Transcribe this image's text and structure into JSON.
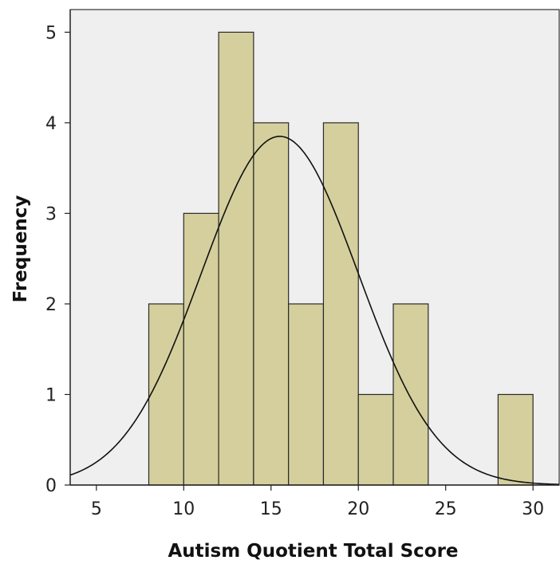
{
  "chart_data": {
    "type": "bar",
    "subtype": "histogram",
    "xlabel": "Autism Quotient Total Score",
    "ylabel": "Frequency",
    "xlim": [
      3.5,
      31.5
    ],
    "ylim": [
      0,
      5.25
    ],
    "xticks": [
      5,
      10,
      15,
      20,
      25,
      30
    ],
    "yticks": [
      0,
      1,
      2,
      3,
      4,
      5
    ],
    "bins": [
      {
        "start": 8,
        "end": 10,
        "count": 2
      },
      {
        "start": 10,
        "end": 12,
        "count": 3
      },
      {
        "start": 12,
        "end": 14,
        "count": 5
      },
      {
        "start": 14,
        "end": 16,
        "count": 4
      },
      {
        "start": 16,
        "end": 18,
        "count": 2
      },
      {
        "start": 18,
        "end": 20,
        "count": 4
      },
      {
        "start": 20,
        "end": 22,
        "count": 1
      },
      {
        "start": 22,
        "end": 24,
        "count": 2
      },
      {
        "start": 28,
        "end": 30,
        "count": 1
      }
    ],
    "normal_curve": {
      "peak_x": 15.5,
      "peak_y": 3.85,
      "sd": 4.5
    },
    "colors": {
      "bar_fill": "#d4cf9d",
      "bar_stroke": "#2a2a2a",
      "plot_background": "#efefef",
      "curve": "#111111"
    },
    "grid": false,
    "legend": "none"
  }
}
